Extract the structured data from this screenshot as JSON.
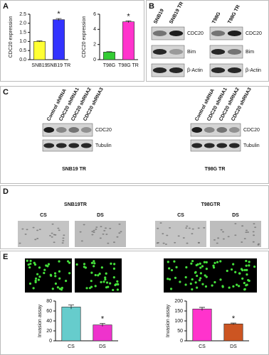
{
  "chart_data": [
    {
      "type": "bar",
      "ylabel": "CDC20 expression",
      "categories": [
        "SNB19",
        "SNB19 TR"
      ],
      "values": [
        1.0,
        2.2
      ],
      "errors": [
        0.03,
        0.06
      ],
      "colors": [
        "#ffff33",
        "#3333ff"
      ],
      "ylim": [
        0,
        2.5
      ],
      "yticks": [
        {
          "value": 0,
          "label": "0.0"
        },
        0.5,
        {
          "value": 1,
          "label": "1.0"
        },
        1.5,
        {
          "value": 2,
          "label": "2.0"
        },
        2.5
      ],
      "annotations": [
        {
          "category": "SNB19 TR",
          "text": "*"
        }
      ]
    },
    {
      "type": "bar",
      "ylabel": "CDC20 expression",
      "categories": [
        "T98G",
        "T98G TR"
      ],
      "values": [
        1.0,
        5.0
      ],
      "errors": [
        0.05,
        0.12
      ],
      "colors": [
        "#33cc33",
        "#ff33cc"
      ],
      "ylim": [
        0,
        6
      ],
      "yticks": [
        0,
        2,
        4,
        6
      ],
      "annotations": [
        {
          "category": "T98G TR",
          "text": "*"
        }
      ]
    },
    {
      "type": "bar",
      "ylabel": "Invasion assay",
      "categories": [
        "CS",
        "DS"
      ],
      "values": [
        68,
        32
      ],
      "errors": [
        4,
        3
      ],
      "colors": [
        "#66cccc",
        "#ee33cc"
      ],
      "ylim": [
        0,
        80
      ],
      "yticks": [
        0,
        20,
        40,
        60,
        80
      ],
      "annotations": [
        {
          "category": "DS",
          "text": "*"
        }
      ]
    },
    {
      "type": "bar",
      "ylabel": "Invasion assay",
      "categories": [
        "CS",
        "DS"
      ],
      "values": [
        160,
        85
      ],
      "errors": [
        8,
        4
      ],
      "colors": [
        "#ff33cc",
        "#cc5522"
      ],
      "ylim": [
        0,
        200
      ],
      "yticks": [
        0,
        50,
        100,
        150,
        200
      ],
      "annotations": [
        {
          "category": "DS",
          "text": "*"
        }
      ]
    }
  ],
  "figure": {
    "panels": [
      "A",
      "B",
      "C",
      "D",
      "E"
    ],
    "B": {
      "lanes_left": [
        "SNB19",
        "SNB19 TR"
      ],
      "lanes_right": [
        "T98G",
        "T98G TR"
      ],
      "labels": [
        "CDC20",
        "Bim",
        "β-Actin"
      ]
    },
    "C": {
      "lanes": [
        "Control shRNA",
        "CDC20 shRNA1",
        "CDC20 shRNA2",
        "CDC20 shRNA3"
      ],
      "labels": [
        "CDC20",
        "Tubulin"
      ],
      "captions": [
        "SNB19  TR",
        "T98G TR"
      ]
    },
    "D": {
      "titles": [
        "SNB19TR",
        "T98GTR"
      ],
      "conditions": [
        "CS",
        "DS"
      ]
    }
  }
}
